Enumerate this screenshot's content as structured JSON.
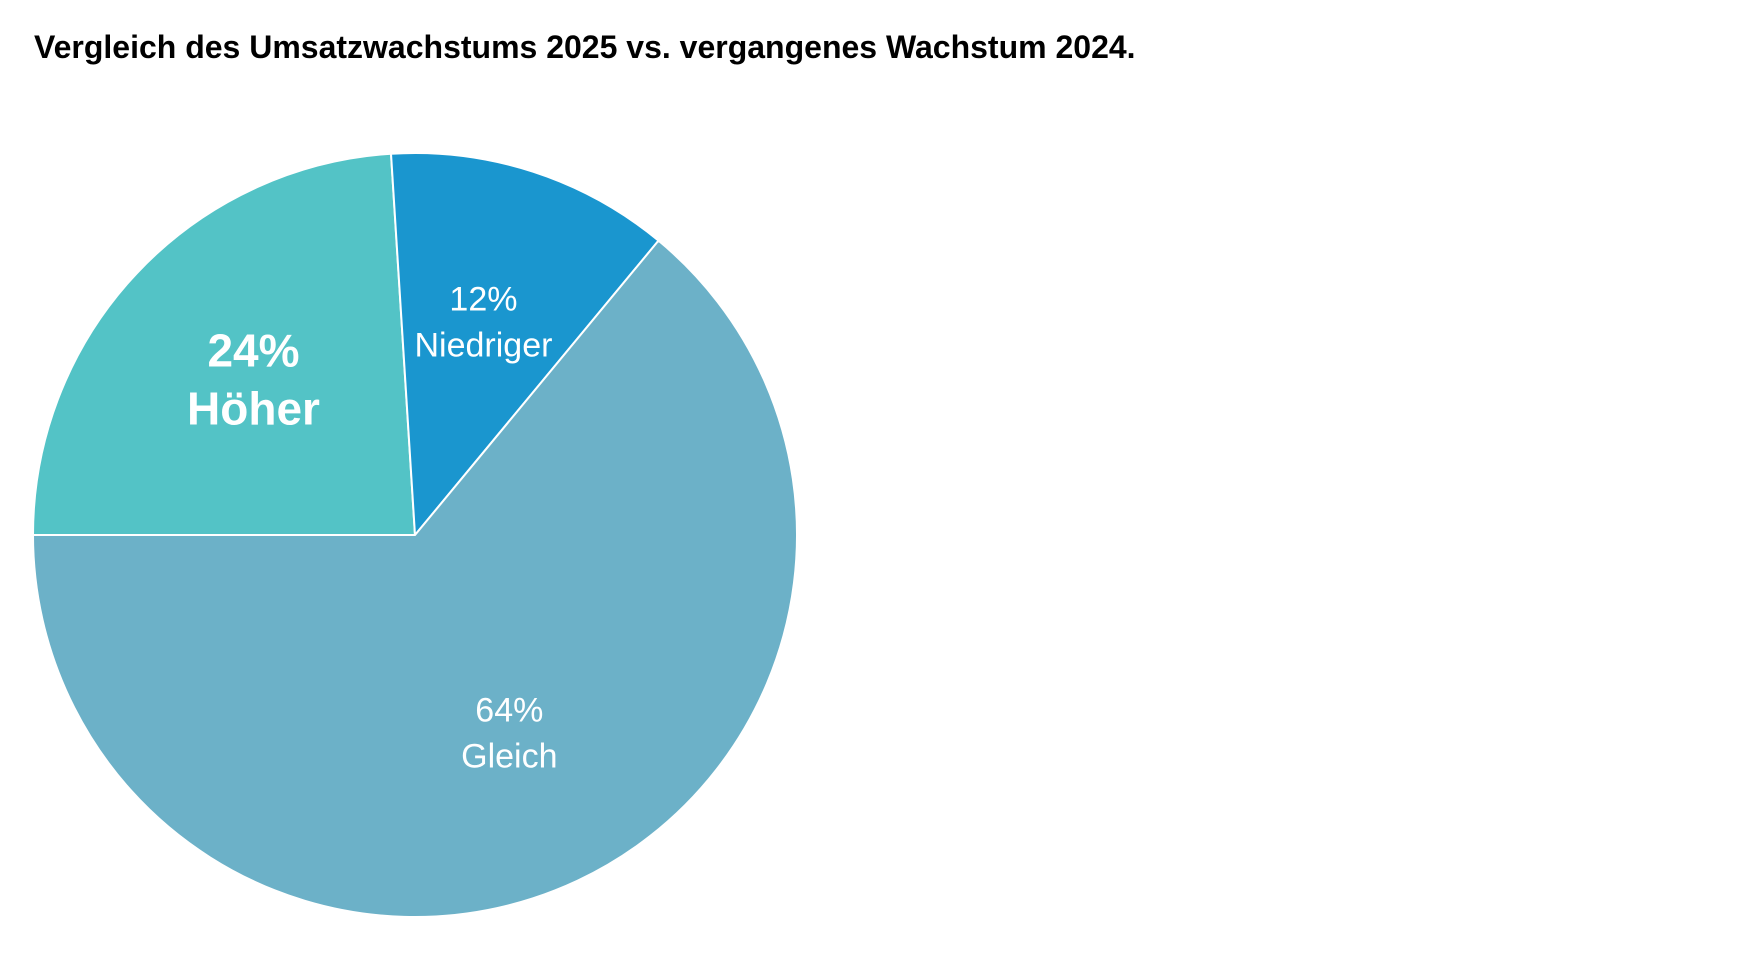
{
  "chart_data": {
    "type": "pie",
    "title": "Vergleich des Umsatzwachstums 2025 vs. vergangenes Wachstum 2024.",
    "categories": [
      "Höher",
      "Niedriger",
      "Gleich"
    ],
    "values": [
      24,
      12,
      64
    ],
    "value_labels": [
      "24%",
      "12%",
      "64%"
    ],
    "colors": [
      "#53c3c6",
      "#1a96cf",
      "#6cb1c8"
    ]
  }
}
